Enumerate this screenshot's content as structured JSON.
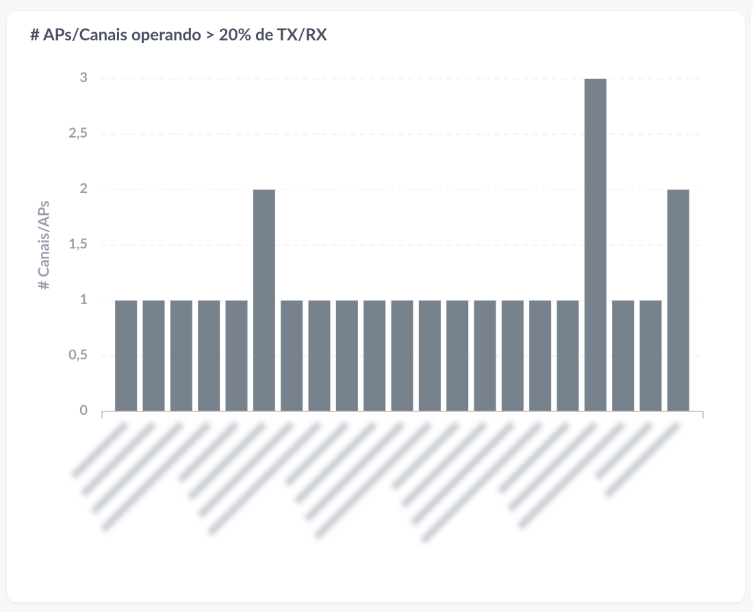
{
  "chart_data": {
    "type": "bar",
    "title": "# APs/Canais operando > 20% de TX/RX",
    "y_label": "# Canais/APs",
    "categories": [
      null,
      null,
      null,
      null,
      null,
      null,
      null,
      null,
      null,
      null,
      null,
      null,
      null,
      null,
      null,
      null,
      null,
      null,
      null,
      null,
      null
    ],
    "values": [
      1,
      1,
      1,
      1,
      1,
      2,
      1,
      1,
      1,
      1,
      1,
      1,
      1,
      1,
      1,
      1,
      1,
      3,
      1,
      1,
      2
    ],
    "color": "#78828d",
    "ylim": [
      0,
      3
    ],
    "yticks": [
      0,
      {
        "value": 0.5,
        "label": "0,5"
      },
      1,
      {
        "value": 1.5,
        "label": "1,5"
      },
      2,
      {
        "value": 2.5,
        "label": "2,5"
      },
      3
    ],
    "grid": true
  }
}
